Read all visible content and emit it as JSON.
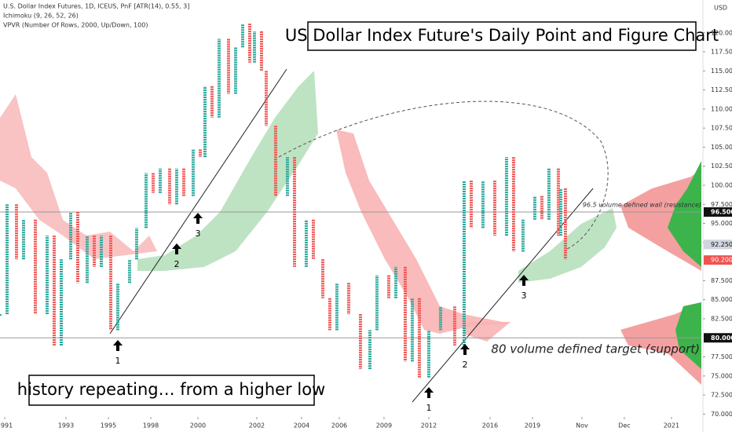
{
  "chart_data": {
    "type": "pnf",
    "title": "US Dollar Index Future's Daily Point and Figure Chart",
    "symbol": "U.S. Dollar Index Futures, 1D, ICEUS, PnF [ATR(14), 0.55, 3]",
    "indicators": [
      "Ichimoku (9, 26, 52, 26)",
      "VPVR (Number Of Rows, 2000, Up/Down, 100)"
    ],
    "currency": "USD",
    "up_color": "#26a69a",
    "down_color": "#ef5350",
    "x": [
      0,
      3,
      7,
      10,
      15,
      20,
      23,
      26,
      30,
      33,
      37,
      40,
      43,
      47,
      50,
      55,
      58,
      62,
      65,
      68,
      72,
      75,
      78,
      82,
      85,
      87,
      90,
      93,
      97,
      100,
      103,
      106,
      108,
      111,
      113,
      117,
      122,
      125,
      130,
      133,
      137,
      140,
      143,
      148,
      153,
      157,
      160,
      165,
      168,
      172,
      175,
      178,
      182,
      187,
      193,
      197,
      200,
      205,
      210,
      215,
      218,
      222,
      227,
      230,
      233,
      237,
      238,
      240
    ],
    "series": [
      {
        "values": [
          83.1,
          97.5,
          90.3,
          95.5,
          83.1,
          93.4,
          79,
          90.3,
          96.5,
          87.2,
          93.4,
          89.3,
          93.4,
          81,
          87.2,
          90.3,
          94.4,
          101.6,
          99,
          102.2,
          97.5,
          102.2,
          98.6,
          104.7,
          103.7,
          113,
          108.9,
          119.2,
          112,
          118.1,
          121.2,
          116.1,
          120.2,
          115,
          107.8,
          98.6,
          103.7,
          89.3,
          95.5,
          90.3,
          85.2,
          81,
          87.2,
          83.1,
          75.9,
          81,
          88.2,
          85.2,
          89.3,
          76.9,
          85.2,
          74.8,
          81,
          84.1,
          79,
          100.6,
          94.4,
          100.6,
          93.4,
          103.7,
          91.3,
          95.5,
          98.6,
          95.5,
          102.2,
          93.4,
          99.6,
          90.3
        ]
      }
    ],
    "xlim": [
      0,
      297.7
    ],
    "ylim": [
      68.7,
      124.3
    ],
    "xticks": [
      {
        "value": 2,
        "label": "1991"
      },
      {
        "value": 28,
        "label": "1993"
      },
      {
        "value": 46,
        "label": "1995"
      },
      {
        "value": 64,
        "label": "1998"
      },
      {
        "value": 84,
        "label": "2000"
      },
      {
        "value": 109,
        "label": "2002"
      },
      {
        "value": 128,
        "label": "2004"
      },
      {
        "value": 144,
        "label": "2006"
      },
      {
        "value": 163,
        "label": "2009"
      },
      {
        "value": 182,
        "label": "2012"
      },
      {
        "value": 208,
        "label": "2016"
      },
      {
        "value": 226,
        "label": "2019"
      },
      {
        "value": 247,
        "label": "Nov"
      },
      {
        "value": 265,
        "label": "Dec"
      },
      {
        "value": 285,
        "label": "2021"
      }
    ],
    "yticks": [
      {
        "value": 70,
        "label": "70.000"
      },
      {
        "value": 72.5,
        "label": "72.500"
      },
      {
        "value": 75,
        "label": "75.000"
      },
      {
        "value": 77.5,
        "label": "77.500"
      },
      {
        "value": 82.5,
        "label": "82.500"
      },
      {
        "value": 85,
        "label": "85.000"
      },
      {
        "value": 87.5,
        "label": "87.500"
      },
      {
        "value": 92.5,
        "label": "92.500"
      },
      {
        "value": 95,
        "label": "95.000"
      },
      {
        "value": 97.5,
        "label": "97.500"
      },
      {
        "value": 100,
        "label": "100.000"
      },
      {
        "value": 102.5,
        "label": "102.500"
      },
      {
        "value": 105,
        "label": "105.000"
      },
      {
        "value": 107.5,
        "label": "107.500"
      },
      {
        "value": 110,
        "label": "110.000"
      },
      {
        "value": 112.5,
        "label": "112.500"
      },
      {
        "value": 115,
        "label": "115.000"
      },
      {
        "value": 117.5,
        "label": "117.500"
      },
      {
        "value": 120,
        "label": "120.000"
      }
    ],
    "levels": [
      {
        "value": 96.5,
        "label": "96.500"
      },
      {
        "value": 80,
        "label": "80.000"
      }
    ],
    "price_labels": [
      {
        "value": 92.25,
        "label": "92.250"
      },
      {
        "value": 90.2,
        "label": "90.200"
      }
    ],
    "annotations": [
      "history repeating… from a higher low",
      "80 volume defined target (support)",
      "96.5 volume defined wall (resistance)"
    ],
    "markers": [
      "1",
      "2",
      "3",
      "1",
      "2",
      "3"
    ]
  }
}
